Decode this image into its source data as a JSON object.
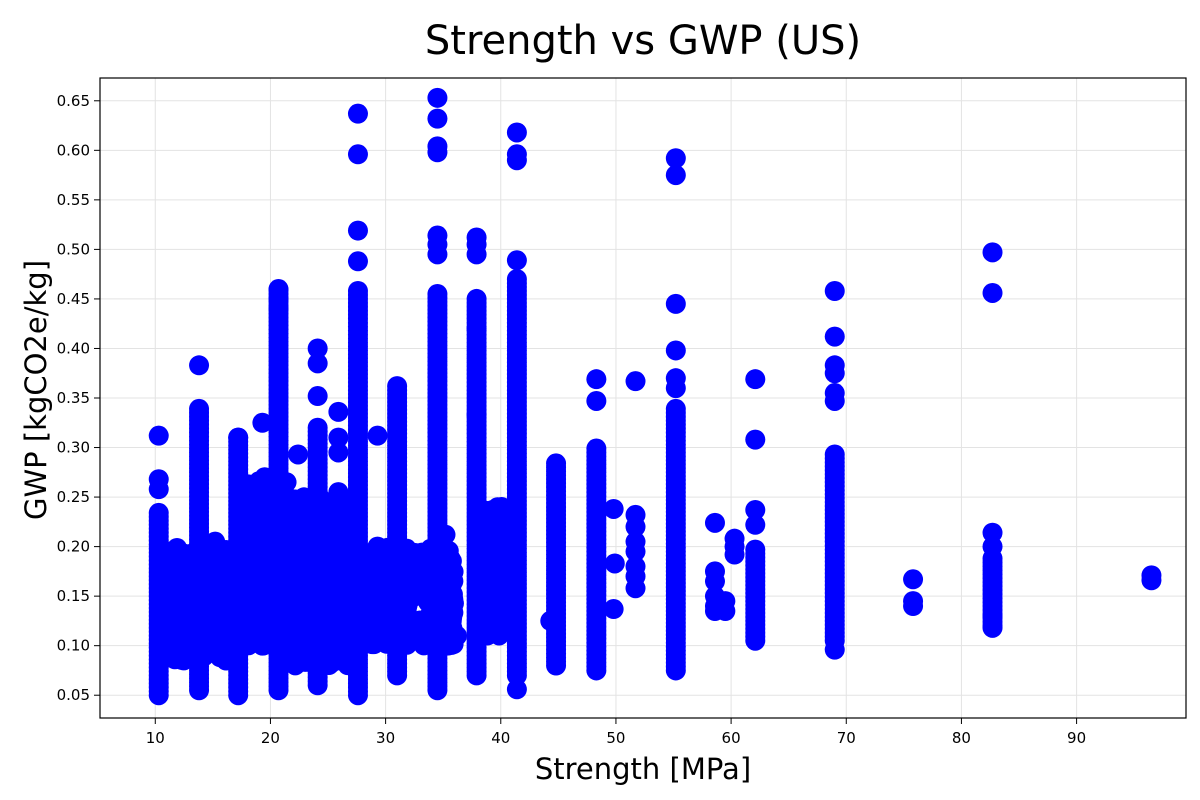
{
  "chart_data": {
    "type": "scatter",
    "title": "Strength vs GWP (US)",
    "xlabel": "Strength [MPa]",
    "ylabel": "GWP [kgCO2e/kg]",
    "xlim": [
      5.2,
      99.5
    ],
    "ylim": [
      0.027,
      0.673
    ],
    "xticks": [
      10,
      20,
      30,
      40,
      50,
      60,
      70,
      80,
      90
    ],
    "yticks": [
      0.05,
      0.1,
      0.15,
      0.2,
      0.25,
      0.3,
      0.35,
      0.4,
      0.45,
      0.5,
      0.55,
      0.6,
      0.65
    ],
    "grid": true,
    "legend": "none",
    "marker_color": "#0000ff",
    "columns": [
      {
        "x": 10.3,
        "ymin": 0.05,
        "ymax": 0.235
      },
      {
        "x": 13.8,
        "ymin": 0.055,
        "ymax": 0.34
      },
      {
        "x": 17.2,
        "ymin": 0.05,
        "ymax": 0.31
      },
      {
        "x": 20.7,
        "ymin": 0.055,
        "ymax": 0.46
      },
      {
        "x": 24.1,
        "ymin": 0.06,
        "ymax": 0.32
      },
      {
        "x": 27.6,
        "ymin": 0.05,
        "ymax": 0.46
      },
      {
        "x": 31.0,
        "ymin": 0.07,
        "ymax": 0.365
      },
      {
        "x": 34.5,
        "ymin": 0.055,
        "ymax": 0.455
      },
      {
        "x": 37.9,
        "ymin": 0.07,
        "ymax": 0.45
      },
      {
        "x": 41.4,
        "ymin": 0.07,
        "ymax": 0.47
      },
      {
        "x": 44.8,
        "ymin": 0.08,
        "ymax": 0.285
      },
      {
        "x": 48.3,
        "ymin": 0.075,
        "ymax": 0.3
      },
      {
        "x": 55.2,
        "ymin": 0.075,
        "ymax": 0.34
      },
      {
        "x": 62.1,
        "ymin": 0.105,
        "ymax": 0.2
      },
      {
        "x": 69.0,
        "ymin": 0.105,
        "ymax": 0.295
      },
      {
        "x": 82.7,
        "ymin": 0.12,
        "ymax": 0.19
      }
    ],
    "clusters": [
      {
        "xmin": 21.2,
        "xmax": 27.0,
        "ymin": 0.08,
        "ymax": 0.25
      },
      {
        "xmin": 28.0,
        "xmax": 36.0,
        "ymin": 0.1,
        "ymax": 0.2
      },
      {
        "xmin": 11.0,
        "xmax": 16.5,
        "ymin": 0.085,
        "ymax": 0.2
      },
      {
        "xmin": 18.0,
        "xmax": 20.3,
        "ymin": 0.1,
        "ymax": 0.27
      },
      {
        "xmin": 38.4,
        "xmax": 41.0,
        "ymin": 0.11,
        "ymax": 0.24
      }
    ],
    "points": [
      [
        10.3,
        0.312
      ],
      [
        10.3,
        0.268
      ],
      [
        10.3,
        0.258
      ],
      [
        13.8,
        0.383
      ],
      [
        15.2,
        0.205
      ],
      [
        16.7,
        0.13
      ],
      [
        17.2,
        0.31
      ],
      [
        19.3,
        0.325
      ],
      [
        19.5,
        0.27
      ],
      [
        19.3,
        0.26
      ],
      [
        19.3,
        0.1
      ],
      [
        20.7,
        0.46
      ],
      [
        20.7,
        0.45
      ],
      [
        20.7,
        0.44
      ],
      [
        21.0,
        0.25
      ],
      [
        21.4,
        0.265
      ],
      [
        22.4,
        0.293
      ],
      [
        22.5,
        0.2
      ],
      [
        22.2,
        0.21
      ],
      [
        24.1,
        0.4
      ],
      [
        24.1,
        0.385
      ],
      [
        24.1,
        0.352
      ],
      [
        25.9,
        0.336
      ],
      [
        25.9,
        0.31
      ],
      [
        25.9,
        0.295
      ],
      [
        25.9,
        0.255
      ],
      [
        27.6,
        0.637
      ],
      [
        27.6,
        0.596
      ],
      [
        27.6,
        0.519
      ],
      [
        27.6,
        0.488
      ],
      [
        29.3,
        0.312
      ],
      [
        29.3,
        0.2
      ],
      [
        31.0,
        0.19
      ],
      [
        32.7,
        0.177
      ],
      [
        34.5,
        0.653
      ],
      [
        34.5,
        0.632
      ],
      [
        34.5,
        0.604
      ],
      [
        34.5,
        0.598
      ],
      [
        34.5,
        0.514
      ],
      [
        34.5,
        0.505
      ],
      [
        34.5,
        0.495
      ],
      [
        35.2,
        0.212
      ],
      [
        35.4,
        0.195
      ],
      [
        36.2,
        0.11
      ],
      [
        35.5,
        0.12
      ],
      [
        37.9,
        0.512
      ],
      [
        37.9,
        0.505
      ],
      [
        37.9,
        0.495
      ],
      [
        37.9,
        0.42
      ],
      [
        37.9,
        0.333
      ],
      [
        39.3,
        0.237
      ],
      [
        39.5,
        0.22
      ],
      [
        39.4,
        0.16
      ],
      [
        39.7,
        0.135
      ],
      [
        41.4,
        0.618
      ],
      [
        41.4,
        0.596
      ],
      [
        41.4,
        0.59
      ],
      [
        41.4,
        0.489
      ],
      [
        41.4,
        0.056
      ],
      [
        44.3,
        0.125
      ],
      [
        48.3,
        0.369
      ],
      [
        48.3,
        0.347
      ],
      [
        49.8,
        0.238
      ],
      [
        49.9,
        0.183
      ],
      [
        49.8,
        0.137
      ],
      [
        51.7,
        0.367
      ],
      [
        51.7,
        0.232
      ],
      [
        51.7,
        0.22
      ],
      [
        51.7,
        0.205
      ],
      [
        51.7,
        0.195
      ],
      [
        51.7,
        0.18
      ],
      [
        51.7,
        0.17
      ],
      [
        51.7,
        0.158
      ],
      [
        55.2,
        0.592
      ],
      [
        55.2,
        0.575
      ],
      [
        55.2,
        0.445
      ],
      [
        55.2,
        0.398
      ],
      [
        55.2,
        0.37
      ],
      [
        55.2,
        0.36
      ],
      [
        58.6,
        0.224
      ],
      [
        58.6,
        0.175
      ],
      [
        58.6,
        0.165
      ],
      [
        58.6,
        0.15
      ],
      [
        58.6,
        0.14
      ],
      [
        58.6,
        0.135
      ],
      [
        59.5,
        0.145
      ],
      [
        59.5,
        0.135
      ],
      [
        60.3,
        0.208
      ],
      [
        60.3,
        0.2
      ],
      [
        60.3,
        0.192
      ],
      [
        62.1,
        0.369
      ],
      [
        62.1,
        0.308
      ],
      [
        62.1,
        0.237
      ],
      [
        62.1,
        0.222
      ],
      [
        69.0,
        0.458
      ],
      [
        69.0,
        0.412
      ],
      [
        69.0,
        0.383
      ],
      [
        69.0,
        0.375
      ],
      [
        69.0,
        0.355
      ],
      [
        69.0,
        0.347
      ],
      [
        69.0,
        0.096
      ],
      [
        75.8,
        0.167
      ],
      [
        75.8,
        0.145
      ],
      [
        75.8,
        0.14
      ],
      [
        82.7,
        0.497
      ],
      [
        82.7,
        0.456
      ],
      [
        82.7,
        0.214
      ],
      [
        82.7,
        0.2
      ],
      [
        82.7,
        0.13
      ],
      [
        82.7,
        0.118
      ],
      [
        96.5,
        0.171
      ],
      [
        96.5,
        0.166
      ]
    ]
  }
}
